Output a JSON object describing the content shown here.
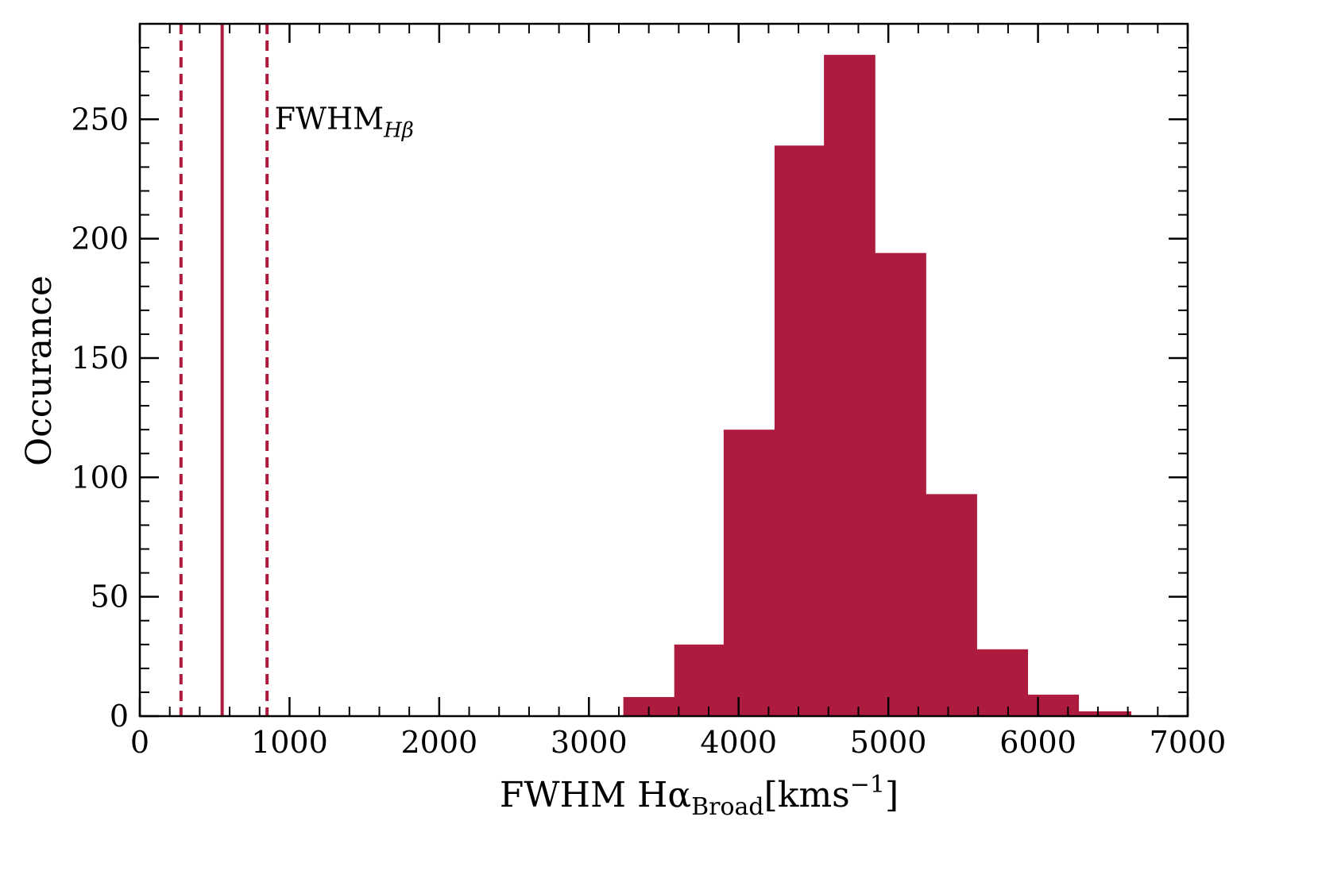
{
  "chart_data": {
    "type": "bar",
    "subtype": "histogram",
    "xlabel": "FWHM Hα",
    "xlabel_subscript": "Broad",
    "xlabel_unit": "[kms",
    "xlabel_unit_sup": "−1",
    "xlabel_unit_close": "]",
    "ylabel": "Occurance",
    "xlim": [
      0,
      7000
    ],
    "ylim": [
      0,
      290
    ],
    "xticks": [
      0,
      1000,
      2000,
      3000,
      4000,
      5000,
      6000,
      7000
    ],
    "xtick_labels": [
      "0",
      "1000",
      "2000",
      "3000",
      "4000",
      "5000",
      "6000",
      "7000"
    ],
    "yticks": [
      0,
      50,
      100,
      150,
      200,
      250
    ],
    "ytick_labels": [
      "0",
      "50",
      "100",
      "150",
      "200",
      "250"
    ],
    "bins": [
      {
        "x0": 3230,
        "x1": 3570,
        "count": 8
      },
      {
        "x0": 3570,
        "x1": 3900,
        "count": 30
      },
      {
        "x0": 3900,
        "x1": 4240,
        "count": 120
      },
      {
        "x0": 4240,
        "x1": 4570,
        "count": 239
      },
      {
        "x0": 4570,
        "x1": 4910,
        "count": 277
      },
      {
        "x0": 4910,
        "x1": 5250,
        "count": 194
      },
      {
        "x0": 5250,
        "x1": 5590,
        "count": 93
      },
      {
        "x0": 5590,
        "x1": 5930,
        "count": 28
      },
      {
        "x0": 5930,
        "x1": 6270,
        "count": 9
      },
      {
        "x0": 6270,
        "x1": 6620,
        "count": 2
      }
    ],
    "vlines": [
      {
        "x": 275,
        "style": "dashed"
      },
      {
        "x": 550,
        "style": "solid"
      },
      {
        "x": 850,
        "style": "dashed"
      }
    ],
    "annotation": {
      "text": "FWHM",
      "subscript": "Hβ",
      "x": 900,
      "y": 246
    },
    "bar_color": "#ad1b3e",
    "line_color": "#ad1b3e",
    "grid": false
  }
}
